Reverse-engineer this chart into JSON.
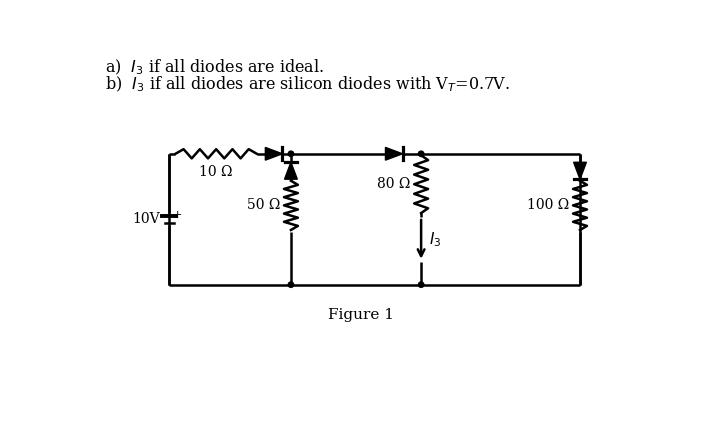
{
  "background_color": "#ffffff",
  "line_color": "#000000",
  "line_width": 1.8,
  "resistor_10_label": "10 Ω",
  "resistor_50_label": "50 Ω",
  "resistor_80_label": "80 Ω",
  "resistor_100_label": "100 Ω",
  "voltage_label": "10V",
  "figure_label": "Figure 1",
  "title_a": "a)  $I_3$ if all diodes are ideal.",
  "title_b": "b)  $I_3$ if all diodes are silicon diodes with V$_{T}$=0.7V."
}
